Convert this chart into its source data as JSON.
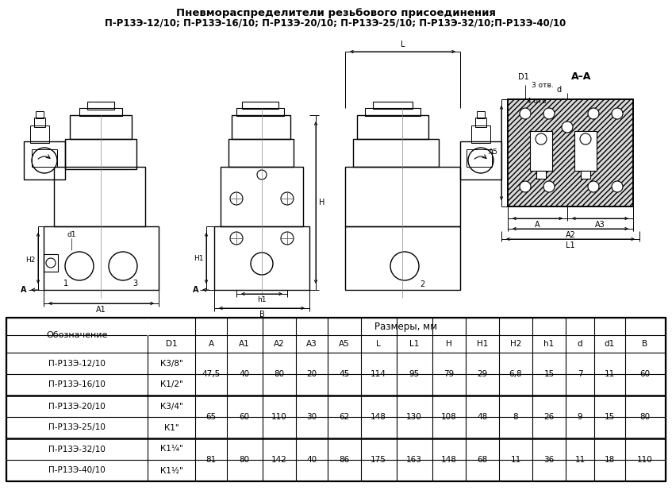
{
  "title_line1": "Пневмораспределители резьбового присоединения",
  "title_line2": "П-Р13Э-12/10; П-Р13Э-16/10; П-Р13Э-20/10; П-Р13Э-25/10; П-Р13Э-32/10;П-Р13Э-40/10",
  "col_names": [
    "D1",
    "A",
    "A1",
    "A2",
    "A3",
    "A5",
    "L",
    "L1",
    "H",
    "H1",
    "H2",
    "h1",
    "d",
    "d1",
    "B"
  ],
  "row_data": [
    [
      "П-Р13Э-12/10",
      "К3/8\""
    ],
    [
      "П-Р13Э-16/10",
      "К1/2\""
    ],
    [
      "П-Р13Э-20/10",
      "К3/4\""
    ],
    [
      "П-Р13Э-25/10",
      "К1\""
    ],
    [
      "П-Р13Э-32/10",
      "К1¼\""
    ],
    [
      "П-Р13Э-40/10",
      "К1½\""
    ]
  ],
  "merged_data": [
    [
      "47,5",
      "40",
      "80",
      "20",
      "45",
      "114",
      "95",
      "79",
      "29",
      "6,8",
      "15",
      "7",
      "11",
      "60"
    ],
    [
      "65",
      "60",
      "110",
      "30",
      "62",
      "148",
      "130",
      "108",
      "48",
      "8",
      "26",
      "9",
      "15",
      "80"
    ],
    [
      "81",
      "80",
      "142",
      "40",
      "86",
      "175",
      "163",
      "148",
      "68",
      "11",
      "36",
      "11",
      "18",
      "110"
    ]
  ],
  "bg_color": "#ffffff"
}
